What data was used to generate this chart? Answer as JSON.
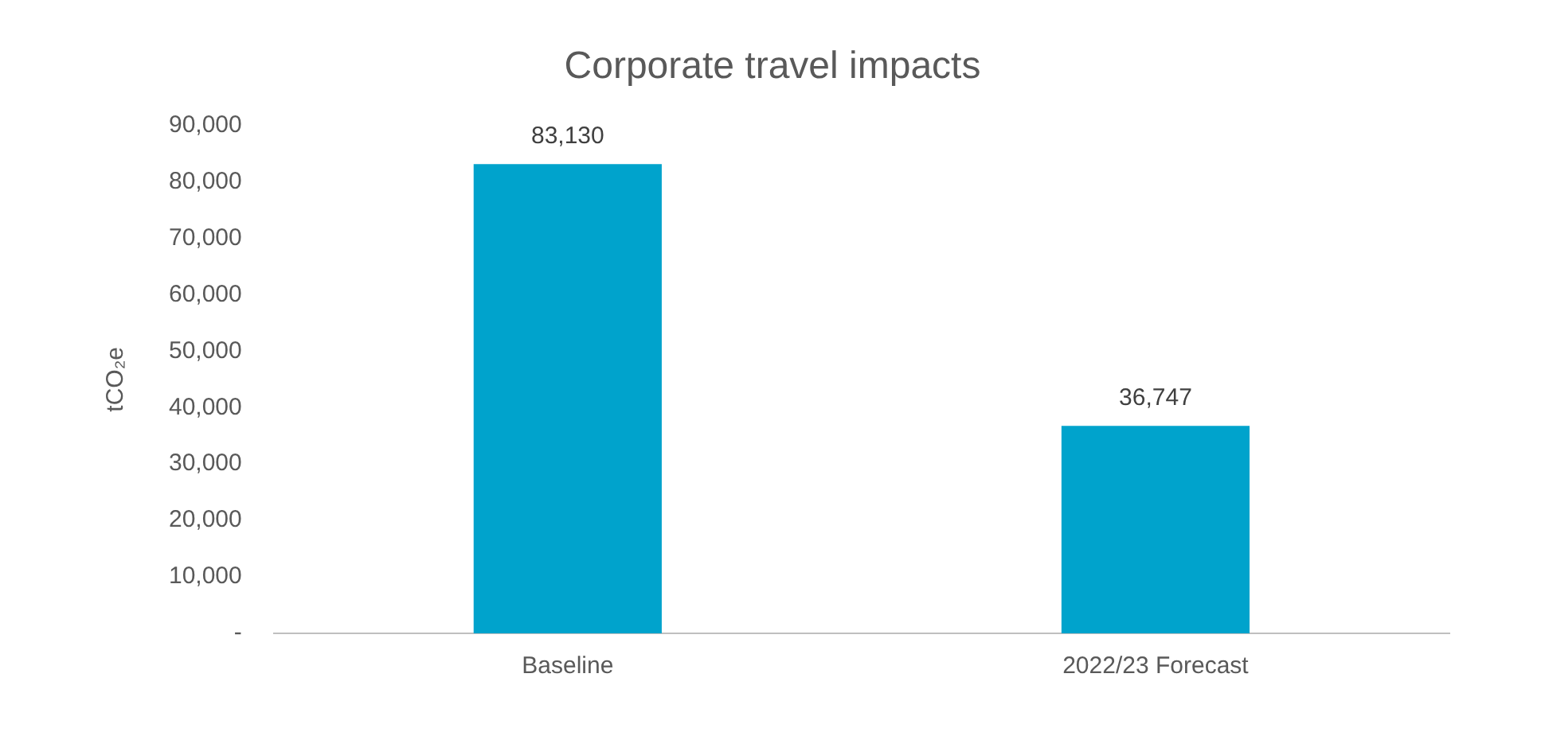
{
  "chart_data": {
    "type": "bar",
    "title": "Corporate travel impacts",
    "ylabel": "tCO₂e",
    "categories": [
      "Baseline",
      "2022/23 Forecast"
    ],
    "values": [
      83130,
      36747
    ],
    "color": "#00a3cc",
    "ylim": [
      0,
      90000
    ],
    "yticks": [
      {
        "value": 0,
        "label": "-"
      },
      {
        "value": 10000,
        "label": "10,000"
      },
      {
        "value": 20000,
        "label": "20,000"
      },
      {
        "value": 30000,
        "label": "30,000"
      },
      {
        "value": 40000,
        "label": "40,000"
      },
      {
        "value": 50000,
        "label": "50,000"
      },
      {
        "value": 60000,
        "label": "60,000"
      },
      {
        "value": 70000,
        "label": "70,000"
      },
      {
        "value": 80000,
        "label": "80,000"
      },
      {
        "value": 90000,
        "label": "90,000"
      }
    ],
    "value_labels": [
      "83,130",
      "36,747"
    ],
    "grid": false,
    "legend": false
  }
}
